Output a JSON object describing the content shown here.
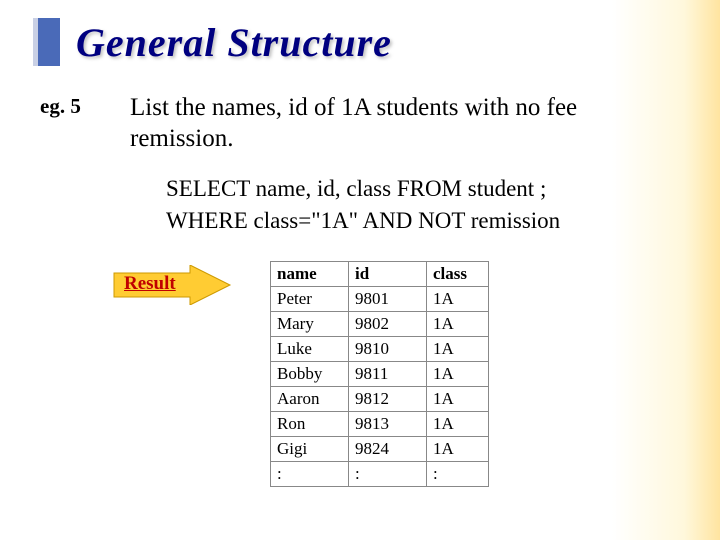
{
  "header": {
    "title": "General Structure",
    "title_color": "#000080",
    "bullet_color": "#4a6ab8"
  },
  "example": {
    "label": "eg. 5",
    "question": "List the names, id of 1A students with no fee remission."
  },
  "code": {
    "line1": "SELECT name, id, class FROM student ;",
    "line2": "WHERE class=\"1A\" AND NOT remission"
  },
  "result": {
    "label": "Result",
    "arrow_fill": "#ffcc33",
    "arrow_stroke": "#cc9900",
    "table": {
      "columns": [
        "name",
        "id",
        "class"
      ],
      "rows": [
        [
          "Peter",
          "9801",
          "1A"
        ],
        [
          "Mary",
          "9802",
          "1A"
        ],
        [
          "Luke",
          "9810",
          "1A"
        ],
        [
          "Bobby",
          "9811",
          "1A"
        ],
        [
          "Aaron",
          "9812",
          "1A"
        ],
        [
          "Ron",
          "9813",
          "1A"
        ],
        [
          "Gigi",
          "9824",
          "1A"
        ],
        [
          ":",
          ":",
          ":"
        ]
      ],
      "border_color": "#888888",
      "font_size": 17
    }
  }
}
